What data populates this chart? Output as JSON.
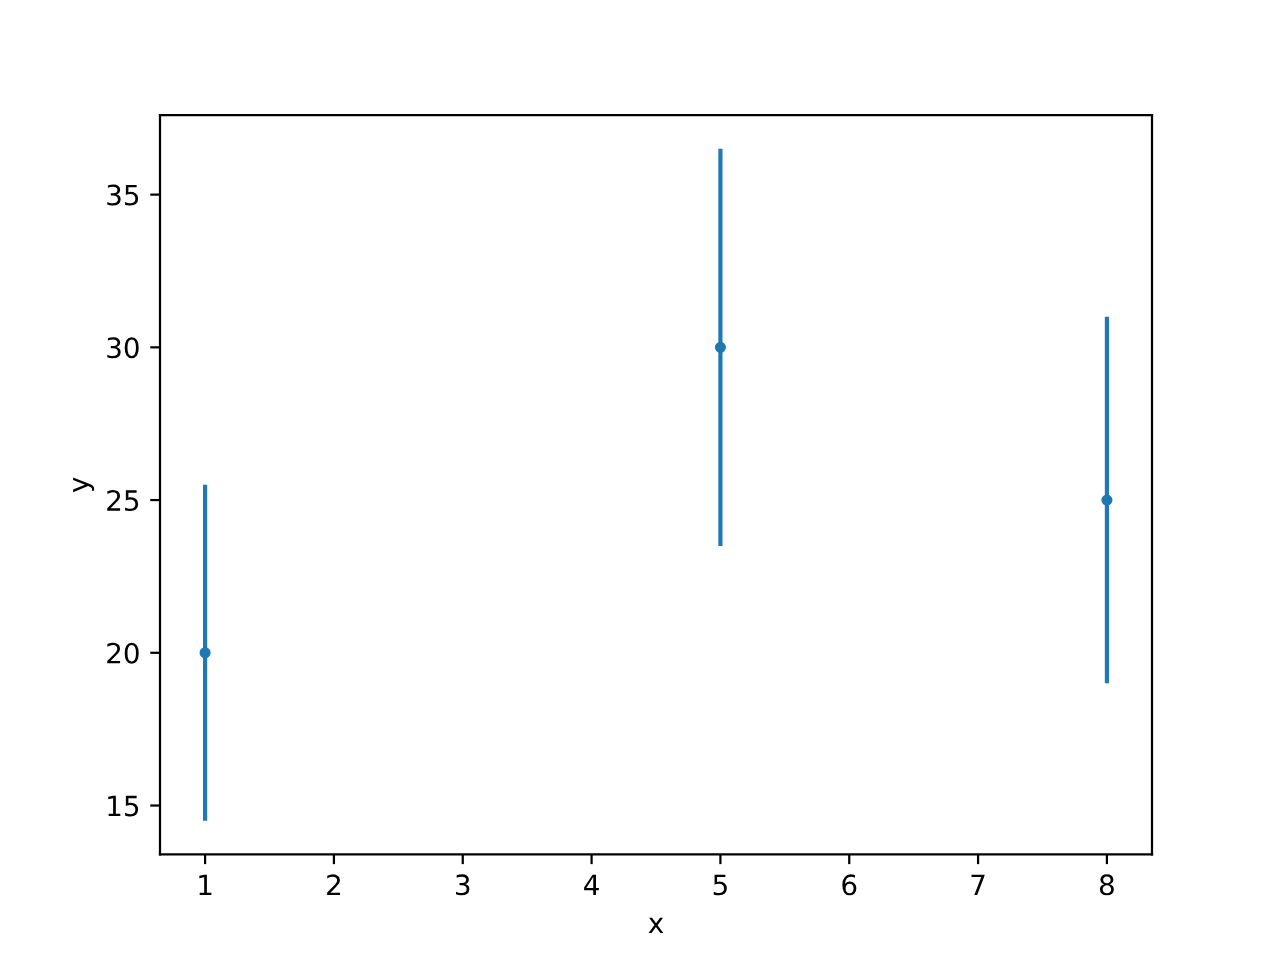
{
  "chart_data": {
    "type": "scatter",
    "xlabel": "x",
    "ylabel": "y",
    "x": [
      1,
      5,
      8
    ],
    "series": [
      {
        "color": "#1f77b4",
        "values": [
          20,
          30,
          25
        ],
        "errors": [
          5.5,
          6.5,
          6
        ]
      }
    ],
    "marker": "circle",
    "xlim": [
      0.65,
      8.35
    ],
    "xticks": [
      1,
      2,
      3,
      4,
      5,
      6,
      7,
      8
    ],
    "ylim": [
      13.4,
      37.6
    ],
    "yticks": [
      15,
      20,
      25,
      30,
      35
    ],
    "grid": false,
    "legend": false
  }
}
